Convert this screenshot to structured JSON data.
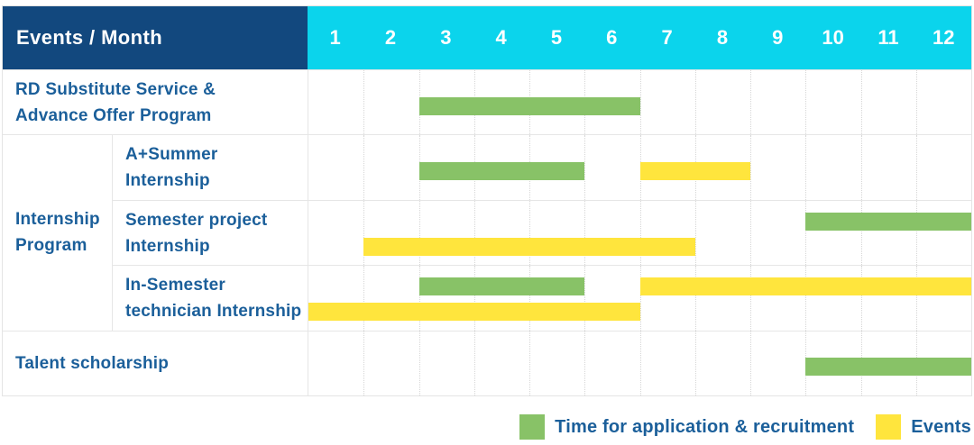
{
  "header": {
    "title": "Events / Month"
  },
  "colors": {
    "header_navy": "#12487e",
    "header_cyan": "#0bd4ec",
    "green": "#88c267",
    "yellow": "#ffe53d",
    "label_blue": "#1b5f9a",
    "grid_gray": "#e6e6e6"
  },
  "chart_data": {
    "type": "gantt",
    "title": "Events / Month",
    "x_axis": {
      "unit": "month",
      "range": [
        1,
        12
      ],
      "grid": true
    },
    "months": [
      "1",
      "2",
      "3",
      "4",
      "5",
      "6",
      "7",
      "8",
      "9",
      "10",
      "11",
      "12"
    ],
    "group": {
      "label": "Internship Program",
      "lines": [
        "Internship",
        "Program"
      ],
      "spans_rows": [
        2,
        3,
        4
      ]
    },
    "rows": [
      {
        "label": "RD Substitute Service & Advance Offer Program",
        "lines": [
          "RD Substitute Service &",
          "Advance Offer Program"
        ],
        "group": null,
        "bars": [
          {
            "series": "Time for application & recruitment",
            "start_month": 3,
            "end_month": 6,
            "lane": "center"
          }
        ]
      },
      {
        "label": "A+Summer Internship",
        "lines": [
          "A+Summer",
          "Internship"
        ],
        "group": "Internship Program",
        "bars": [
          {
            "series": "Time for application & recruitment",
            "start_month": 3,
            "end_month": 5,
            "lane": "center"
          },
          {
            "series": "Events",
            "start_month": 7,
            "end_month": 8,
            "lane": "center"
          }
        ]
      },
      {
        "label": "Semester project Internship",
        "lines": [
          "Semester project",
          "Internship"
        ],
        "group": "Internship Program",
        "bars": [
          {
            "series": "Time for application & recruitment",
            "start_month": 10,
            "end_month": 12,
            "lane": "top"
          },
          {
            "series": "Events",
            "start_month": 2,
            "end_month": 7,
            "lane": "bottom"
          }
        ]
      },
      {
        "label": "In-Semester technician Internship",
        "lines": [
          "In-Semester",
          "technician Internship"
        ],
        "group": "Internship Program",
        "bars": [
          {
            "series": "Time for application & recruitment",
            "start_month": 3,
            "end_month": 5,
            "lane": "top"
          },
          {
            "series": "Events",
            "start_month": 7,
            "end_month": 12,
            "lane": "top"
          },
          {
            "series": "Events",
            "start_month": 1,
            "end_month": 6,
            "lane": "bottom"
          }
        ]
      },
      {
        "label": "Talent scholarship",
        "lines": [
          "Talent scholarship"
        ],
        "group": null,
        "bars": [
          {
            "series": "Time for application & recruitment",
            "start_month": 10,
            "end_month": 12,
            "lane": "center"
          }
        ]
      }
    ],
    "legend": [
      {
        "label": "Time for application & recruitment",
        "color": "#88c267"
      },
      {
        "label": "Events",
        "color": "#ffe53d"
      }
    ],
    "legend_position": "bottom-right"
  }
}
